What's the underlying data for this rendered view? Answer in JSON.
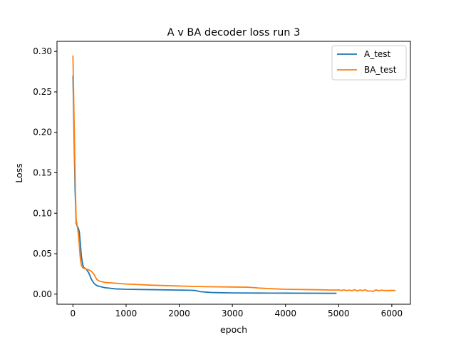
{
  "chart_data": {
    "type": "line",
    "title": "A v BA decoder loss run 3",
    "xlabel": "epoch",
    "ylabel": "Loss",
    "xlim": [
      -300,
      6350
    ],
    "ylim": [
      -0.0125,
      0.3125
    ],
    "xticks": [
      0,
      1000,
      2000,
      3000,
      4000,
      5000,
      6000
    ],
    "yticks": [
      0.0,
      0.05,
      0.1,
      0.15,
      0.2,
      0.25,
      0.3
    ],
    "xtick_labels": [
      "0",
      "1000",
      "2000",
      "3000",
      "4000",
      "5000",
      "6000"
    ],
    "ytick_labels": [
      "0.00",
      "0.05",
      "0.10",
      "0.15",
      "0.20",
      "0.25",
      "0.30"
    ],
    "grid": false,
    "legend_position": "top-right",
    "series": [
      {
        "name": "A_test",
        "color": "#1f77b4",
        "x": [
          0,
          20,
          40,
          60,
          80,
          100,
          120,
          140,
          160,
          180,
          200,
          250,
          300,
          350,
          400,
          450,
          500,
          600,
          800,
          1000,
          1500,
          2000,
          2200,
          2300,
          2400,
          2600,
          3000,
          3500,
          4000,
          4500,
          4960
        ],
        "y": [
          0.27,
          0.2,
          0.13,
          0.088,
          0.084,
          0.082,
          0.077,
          0.062,
          0.046,
          0.038,
          0.033,
          0.031,
          0.026,
          0.018,
          0.013,
          0.0105,
          0.0095,
          0.008,
          0.0065,
          0.006,
          0.0055,
          0.005,
          0.0048,
          0.0045,
          0.003,
          0.002,
          0.0015,
          0.0013,
          0.0012,
          0.0011,
          0.001
        ]
      },
      {
        "name": "BA_test",
        "color": "#ff7f0e",
        "x": [
          0,
          20,
          40,
          60,
          80,
          100,
          120,
          140,
          160,
          180,
          200,
          250,
          300,
          350,
          400,
          450,
          500,
          600,
          800,
          1000,
          1500,
          2000,
          2500,
          3000,
          3300,
          3500,
          3800,
          4000,
          4500,
          4900,
          5000,
          5050,
          5100,
          5150,
          5200,
          5250,
          5300,
          5350,
          5400,
          5450,
          5500,
          5550,
          5600,
          5650,
          5700,
          5750,
          5800,
          5900,
          6000,
          6070
        ],
        "y": [
          0.295,
          0.22,
          0.15,
          0.092,
          0.085,
          0.075,
          0.06,
          0.043,
          0.036,
          0.033,
          0.032,
          0.031,
          0.03,
          0.028,
          0.024,
          0.018,
          0.016,
          0.0145,
          0.0135,
          0.0125,
          0.011,
          0.01,
          0.0092,
          0.0088,
          0.0085,
          0.0075,
          0.0065,
          0.006,
          0.0055,
          0.005,
          0.0052,
          0.0045,
          0.0052,
          0.0044,
          0.005,
          0.0042,
          0.0055,
          0.004,
          0.005,
          0.0044,
          0.0054,
          0.0036,
          0.004,
          0.0034,
          0.0052,
          0.0042,
          0.0048,
          0.0044,
          0.0046,
          0.0044
        ]
      }
    ]
  }
}
